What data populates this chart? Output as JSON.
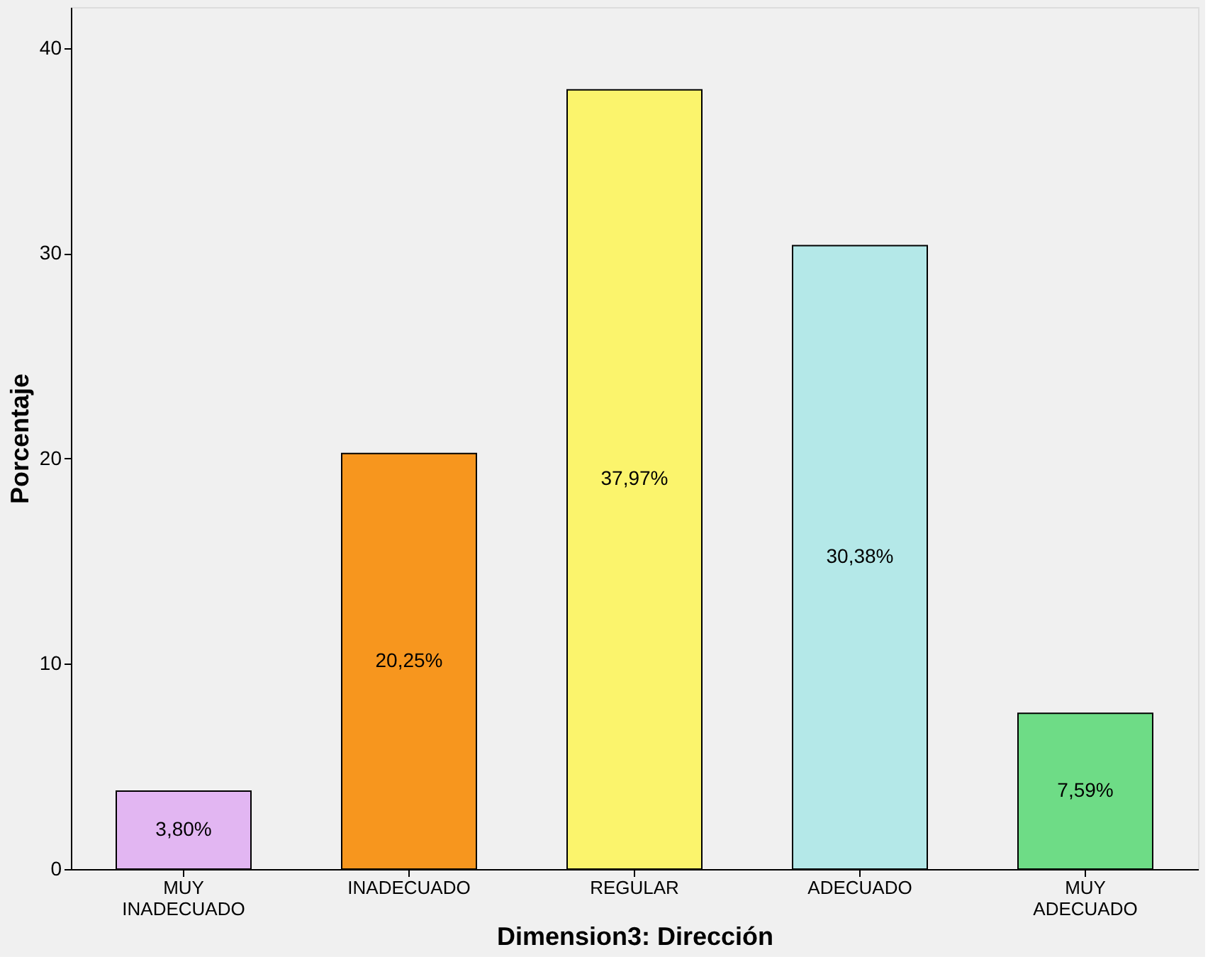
{
  "chart_data": {
    "type": "bar",
    "xlabel": "Dimension3: Dirección",
    "ylabel": "Porcentaje",
    "categories": [
      "MUY INADECUADO",
      "INADECUADO",
      "REGULAR",
      "ADECUADO",
      "MUY ADECUADO"
    ],
    "values": [
      3.8,
      20.25,
      37.97,
      30.38,
      7.59
    ],
    "colors": [
      "#e2b6f2",
      "#f7961e",
      "#fbf46c",
      "#b4e8e8",
      "#6edc86"
    ],
    "value_labels": [
      "3,80%",
      "20,25%",
      "37,97%",
      "30,38%",
      "7,59%"
    ],
    "ylim": [
      0,
      42
    ],
    "yticks": [
      0,
      10,
      20,
      30,
      40
    ],
    "grid": false
  }
}
